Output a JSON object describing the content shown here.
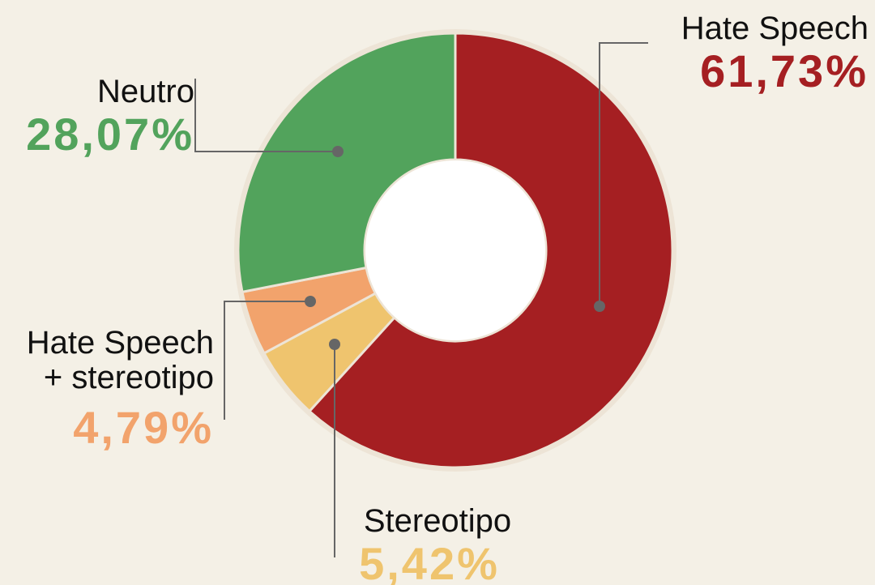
{
  "chart_data": {
    "type": "donut",
    "categories": [
      "Hate Speech",
      "Stereotipo",
      "Hate Speech + stereotipo",
      "Neutro"
    ],
    "values": [
      61.73,
      5.42,
      4.79,
      28.07
    ],
    "value_labels": [
      "61,73%",
      "5,42%",
      "4,79%",
      "28,07%"
    ],
    "colors": [
      "#a51f22",
      "#efc46e",
      "#f2a36c",
      "#52a35c"
    ]
  }
}
